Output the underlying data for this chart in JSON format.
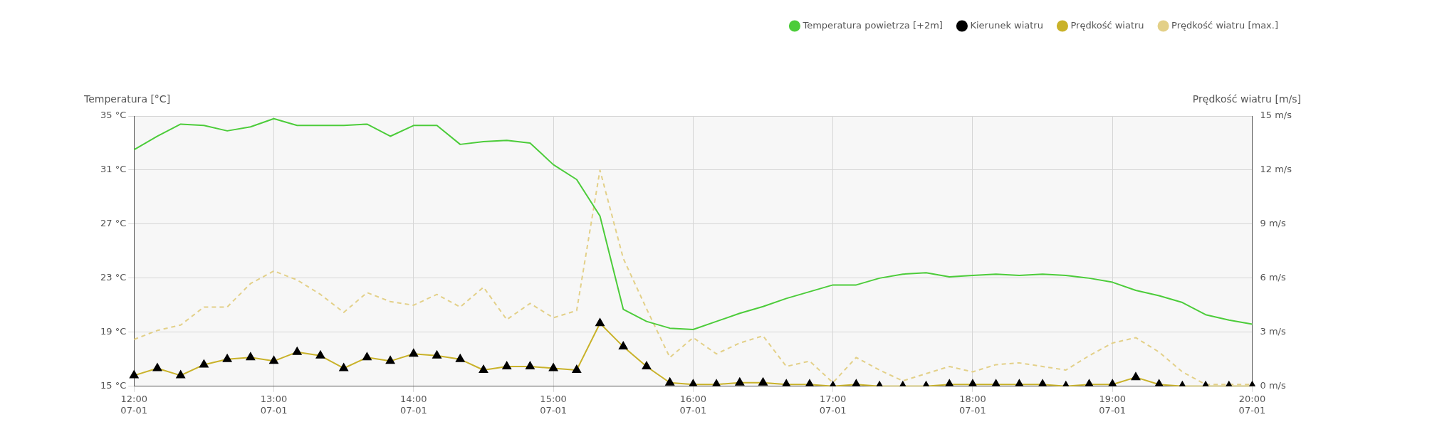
{
  "chart_data": {
    "type": "line",
    "xlabel": null,
    "ylabel": "Temperatura [°C]",
    "y2label": "Prędkość wiatru [m/s]",
    "categories": [
      "12:00\n07-01",
      null,
      null,
      null,
      null,
      null,
      "13:00\n07-01",
      null,
      null,
      null,
      null,
      null,
      "14:00\n07-01",
      null,
      null,
      null,
      null,
      null,
      "15:00\n07-01",
      null,
      null,
      null,
      null,
      null,
      "16:00\n07-01",
      null,
      null,
      null,
      null,
      null,
      "17:00\n07-01",
      null,
      null,
      null,
      null,
      null,
      "18:00\n07-01",
      null,
      null,
      null,
      null,
      null,
      "19:00\n07-01",
      null,
      null,
      null,
      null,
      null,
      "20:00\n07-01"
    ],
    "ylim": [
      15,
      35
    ],
    "yticks": [
      {
        "value": 15,
        "label": "15 °C"
      },
      {
        "value": 19,
        "label": "19 °C"
      },
      {
        "value": 23,
        "label": "23 °C"
      },
      {
        "value": 27,
        "label": "27 °C"
      },
      {
        "value": 31,
        "label": "31 °C"
      },
      {
        "value": 35,
        "label": "35 °C"
      }
    ],
    "y2lim": [
      0,
      15
    ],
    "y2ticks": [
      {
        "value": 0,
        "label": "0 m/s"
      },
      {
        "value": 3,
        "label": "3 m/s"
      },
      {
        "value": 6,
        "label": "6 m/s"
      },
      {
        "value": 9,
        "label": "9 m/s"
      },
      {
        "value": 12,
        "label": "12 m/s"
      },
      {
        "value": 15,
        "label": "15 m/s"
      }
    ],
    "grid": true,
    "legend": "top right",
    "series": [
      {
        "name": "Temperatura powietrza [+2m]",
        "type": "line",
        "color": "#4ccc3a",
        "marker": "none",
        "line_style": "solid",
        "values": [
          32.5,
          33.5,
          34.4,
          34.3,
          33.9,
          34.2,
          34.8,
          34.3,
          34.3,
          34.3,
          34.4,
          33.5,
          34.3,
          34.3,
          32.9,
          33.1,
          33.2,
          33.0,
          31.4,
          30.3,
          27.6,
          20.7,
          19.8,
          19.3,
          19.2,
          19.8,
          20.4,
          20.9,
          21.5,
          22.0,
          22.5,
          22.5,
          23.0,
          23.3,
          23.4,
          23.1,
          23.2,
          23.3,
          23.2,
          23.3,
          23.2,
          23.0,
          22.7,
          22.1,
          21.7,
          21.2,
          20.3,
          19.9,
          19.6
        ]
      },
      {
        "name": "Kierunek wiatru",
        "type": "scatter",
        "axis": "y2",
        "color": "#000000",
        "marker": "triangle",
        "values": [
          0.6,
          1.0,
          0.6,
          1.2,
          1.5,
          1.6,
          1.4,
          1.9,
          1.7,
          1.0,
          1.6,
          1.4,
          1.8,
          1.7,
          1.5,
          0.9,
          1.1,
          1.1,
          1.0,
          0.9,
          3.5,
          2.2,
          1.1,
          0.2,
          0.1,
          0.1,
          0.2,
          0.2,
          0.1,
          0.1,
          0,
          0.1,
          0,
          0,
          0,
          0.1,
          0.1,
          0.1,
          0.1,
          0.1,
          0,
          0.1,
          0.1,
          0.5,
          0.1,
          0,
          0,
          0,
          0
        ]
      },
      {
        "name": "Prędkość wiatru",
        "type": "line",
        "axis": "y2",
        "color": "#c9b22a",
        "marker": "none",
        "line_style": "solid",
        "values": [
          0.6,
          1.0,
          0.6,
          1.2,
          1.5,
          1.6,
          1.4,
          1.9,
          1.7,
          1.0,
          1.6,
          1.4,
          1.8,
          1.7,
          1.5,
          0.9,
          1.1,
          1.1,
          1.0,
          0.9,
          3.5,
          2.2,
          1.1,
          0.2,
          0.1,
          0.1,
          0.2,
          0.2,
          0.1,
          0.1,
          0,
          0.1,
          0,
          0,
          0,
          0.1,
          0.1,
          0.1,
          0.1,
          0.1,
          0,
          0.1,
          0.1,
          0.5,
          0.1,
          0,
          0,
          0,
          0
        ]
      },
      {
        "name": "Prędkość wiatru [max.]",
        "type": "line",
        "axis": "y2",
        "color": "#e3d088",
        "marker": "none",
        "line_style": "dashed",
        "values": [
          2.6,
          3.1,
          3.4,
          4.4,
          4.4,
          5.7,
          6.4,
          5.9,
          5.1,
          4.1,
          5.2,
          4.7,
          4.5,
          5.1,
          4.4,
          5.5,
          3.7,
          4.6,
          3.8,
          4.2,
          12.0,
          7.1,
          4.3,
          1.6,
          2.7,
          1.8,
          2.4,
          2.8,
          1.1,
          1.4,
          0.2,
          1.6,
          0.9,
          0.3,
          0.7,
          1.1,
          0.8,
          1.2,
          1.3,
          1.1,
          0.9,
          1.7,
          2.4,
          2.7,
          1.9,
          0.8,
          0.1,
          0.1,
          0.1
        ]
      }
    ]
  }
}
